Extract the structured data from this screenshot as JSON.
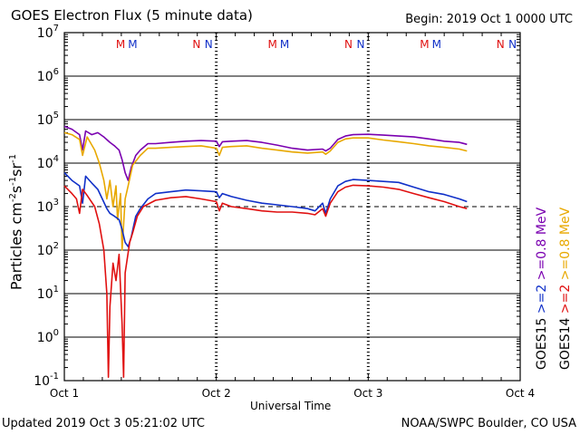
{
  "header": {
    "title": "GOES Electron Flux (5 minute data)",
    "begin": "Begin: 2019 Oct 1 0000 UTC"
  },
  "footer": {
    "updated": "Updated 2019 Oct  3 05:21:02 UTC",
    "source": "NOAA/SWPC Boulder, CO USA"
  },
  "colors": {
    "purple": "#7a00b0",
    "orange": "#e8a800",
    "blue": "#1030c8",
    "red": "#e01010"
  },
  "legend": {
    "goes15": "GOES15",
    "goes14": "GOES14",
    "e_low_15": ">=2",
    "e_high_15": ">=0.8  MeV",
    "e_low_14": ">=2",
    "e_high_14": ">=0.8  MeV"
  },
  "chart_data": {
    "type": "line",
    "title": "GOES Electron Flux (5 minute data)",
    "xlabel": "Universal Time",
    "ylabel_text": "Particles cm⁻²s⁻¹sr⁻¹",
    "yscale": "log",
    "ylim": [
      0.1,
      10000000
    ],
    "xlim_days": [
      0,
      3
    ],
    "x_ticks": [
      "Oct 1",
      "Oct 2",
      "Oct 3",
      "Oct 4"
    ],
    "y_ticks": [
      {
        "base": "10",
        "exp": "-1"
      },
      {
        "base": "10",
        "exp": "0"
      },
      {
        "base": "10",
        "exp": "1"
      },
      {
        "base": "10",
        "exp": "2"
      },
      {
        "base": "10",
        "exp": "3"
      },
      {
        "base": "10",
        "exp": "4"
      },
      {
        "base": "10",
        "exp": "5"
      },
      {
        "base": "10",
        "exp": "6"
      },
      {
        "base": "10",
        "exp": "7"
      }
    ],
    "threshold": 1000,
    "markers": [
      {
        "day": 0.37,
        "label": "M",
        "color": "#e01010"
      },
      {
        "day": 0.45,
        "label": "M",
        "color": "#1030c8"
      },
      {
        "day": 0.87,
        "label": "N",
        "color": "#e01010"
      },
      {
        "day": 0.95,
        "label": "N",
        "color": "#1030c8"
      },
      {
        "day": 1.37,
        "label": "M",
        "color": "#e01010"
      },
      {
        "day": 1.45,
        "label": "M",
        "color": "#1030c8"
      },
      {
        "day": 1.87,
        "label": "N",
        "color": "#e01010"
      },
      {
        "day": 1.95,
        "label": "N",
        "color": "#1030c8"
      },
      {
        "day": 2.37,
        "label": "M",
        "color": "#e01010"
      },
      {
        "day": 2.45,
        "label": "M",
        "color": "#1030c8"
      },
      {
        "day": 2.87,
        "label": "N",
        "color": "#e01010"
      },
      {
        "day": 2.95,
        "label": "N",
        "color": "#1030c8"
      }
    ],
    "series": [
      {
        "name": "GOES15 >=0.8 MeV",
        "color": "#7a00b0",
        "points": [
          [
            0,
            70000
          ],
          [
            0.05,
            60000
          ],
          [
            0.1,
            45000
          ],
          [
            0.12,
            20000
          ],
          [
            0.14,
            55000
          ],
          [
            0.18,
            45000
          ],
          [
            0.22,
            50000
          ],
          [
            0.26,
            40000
          ],
          [
            0.3,
            30000
          ],
          [
            0.33,
            25000
          ],
          [
            0.36,
            20000
          ],
          [
            0.38,
            12000
          ],
          [
            0.4,
            6000
          ],
          [
            0.42,
            4000
          ],
          [
            0.44,
            8000
          ],
          [
            0.47,
            15000
          ],
          [
            0.5,
            20000
          ],
          [
            0.55,
            28000
          ],
          [
            0.6,
            28000
          ],
          [
            0.7,
            30000
          ],
          [
            0.8,
            32000
          ],
          [
            0.9,
            33000
          ],
          [
            1.0,
            32000
          ],
          [
            1.02,
            24000
          ],
          [
            1.04,
            31000
          ],
          [
            1.1,
            32000
          ],
          [
            1.2,
            33000
          ],
          [
            1.3,
            30000
          ],
          [
            1.4,
            26000
          ],
          [
            1.5,
            22000
          ],
          [
            1.6,
            20000
          ],
          [
            1.7,
            21000
          ],
          [
            1.72,
            19000
          ],
          [
            1.75,
            22000
          ],
          [
            1.8,
            35000
          ],
          [
            1.85,
            42000
          ],
          [
            1.9,
            45000
          ],
          [
            2.0,
            46000
          ],
          [
            2.1,
            44000
          ],
          [
            2.2,
            42000
          ],
          [
            2.3,
            40000
          ],
          [
            2.4,
            36000
          ],
          [
            2.5,
            32000
          ],
          [
            2.6,
            30000
          ],
          [
            2.65,
            27000
          ]
        ]
      },
      {
        "name": "GOES14 >=0.8 MeV",
        "color": "#e8a800",
        "points": [
          [
            0,
            50000
          ],
          [
            0.05,
            45000
          ],
          [
            0.1,
            35000
          ],
          [
            0.12,
            15000
          ],
          [
            0.15,
            40000
          ],
          [
            0.2,
            20000
          ],
          [
            0.23,
            10000
          ],
          [
            0.26,
            4000
          ],
          [
            0.28,
            1500
          ],
          [
            0.3,
            4000
          ],
          [
            0.32,
            1000
          ],
          [
            0.34,
            3000
          ],
          [
            0.35,
            500
          ],
          [
            0.37,
            2000
          ],
          [
            0.38,
            100
          ],
          [
            0.4,
            1500
          ],
          [
            0.42,
            3000
          ],
          [
            0.45,
            9000
          ],
          [
            0.5,
            15000
          ],
          [
            0.55,
            22000
          ],
          [
            0.6,
            22000
          ],
          [
            0.7,
            23000
          ],
          [
            0.8,
            24000
          ],
          [
            0.9,
            25000
          ],
          [
            1.0,
            22000
          ],
          [
            1.02,
            15000
          ],
          [
            1.04,
            23000
          ],
          [
            1.1,
            24000
          ],
          [
            1.2,
            25000
          ],
          [
            1.3,
            22000
          ],
          [
            1.4,
            20000
          ],
          [
            1.5,
            18000
          ],
          [
            1.6,
            17000
          ],
          [
            1.7,
            18000
          ],
          [
            1.72,
            16000
          ],
          [
            1.75,
            19000
          ],
          [
            1.8,
            30000
          ],
          [
            1.85,
            36000
          ],
          [
            1.9,
            38000
          ],
          [
            2.0,
            38000
          ],
          [
            2.1,
            34000
          ],
          [
            2.2,
            31000
          ],
          [
            2.3,
            28000
          ],
          [
            2.4,
            25000
          ],
          [
            2.5,
            23000
          ],
          [
            2.6,
            21000
          ],
          [
            2.65,
            19000
          ]
        ]
      },
      {
        "name": "GOES15 >=2 MeV",
        "color": "#1030c8",
        "points": [
          [
            0,
            6000
          ],
          [
            0.05,
            4000
          ],
          [
            0.1,
            3000
          ],
          [
            0.12,
            1200
          ],
          [
            0.14,
            5000
          ],
          [
            0.18,
            3500
          ],
          [
            0.22,
            2500
          ],
          [
            0.25,
            1500
          ],
          [
            0.28,
            900
          ],
          [
            0.3,
            700
          ],
          [
            0.33,
            600
          ],
          [
            0.36,
            500
          ],
          [
            0.38,
            300
          ],
          [
            0.4,
            150
          ],
          [
            0.42,
            120
          ],
          [
            0.44,
            200
          ],
          [
            0.47,
            600
          ],
          [
            0.5,
            900
          ],
          [
            0.55,
            1500
          ],
          [
            0.6,
            2000
          ],
          [
            0.7,
            2200
          ],
          [
            0.8,
            2400
          ],
          [
            0.9,
            2300
          ],
          [
            1.0,
            2200
          ],
          [
            1.02,
            1600
          ],
          [
            1.04,
            2000
          ],
          [
            1.1,
            1700
          ],
          [
            1.2,
            1400
          ],
          [
            1.3,
            1200
          ],
          [
            1.4,
            1100
          ],
          [
            1.5,
            1000
          ],
          [
            1.6,
            900
          ],
          [
            1.65,
            800
          ],
          [
            1.7,
            1200
          ],
          [
            1.72,
            700
          ],
          [
            1.75,
            1500
          ],
          [
            1.8,
            3000
          ],
          [
            1.85,
            3800
          ],
          [
            1.9,
            4200
          ],
          [
            2.0,
            4000
          ],
          [
            2.1,
            3800
          ],
          [
            2.2,
            3600
          ],
          [
            2.3,
            2800
          ],
          [
            2.4,
            2200
          ],
          [
            2.5,
            1900
          ],
          [
            2.6,
            1500
          ],
          [
            2.65,
            1300
          ]
        ]
      },
      {
        "name": "GOES14 >=2 MeV",
        "color": "#e01010",
        "points": [
          [
            0,
            3000
          ],
          [
            0.05,
            2000
          ],
          [
            0.08,
            1500
          ],
          [
            0.1,
            700
          ],
          [
            0.12,
            2500
          ],
          [
            0.15,
            1800
          ],
          [
            0.2,
            1000
          ],
          [
            0.23,
            400
          ],
          [
            0.26,
            100
          ],
          [
            0.28,
            10
          ],
          [
            0.29,
            0.12
          ],
          [
            0.3,
            5
          ],
          [
            0.32,
            50
          ],
          [
            0.34,
            20
          ],
          [
            0.36,
            80
          ],
          [
            0.38,
            2
          ],
          [
            0.39,
            0.12
          ],
          [
            0.4,
            30
          ],
          [
            0.43,
            150
          ],
          [
            0.45,
            250
          ],
          [
            0.48,
            600
          ],
          [
            0.52,
            1000
          ],
          [
            0.6,
            1400
          ],
          [
            0.7,
            1600
          ],
          [
            0.8,
            1700
          ],
          [
            0.9,
            1500
          ],
          [
            1.0,
            1300
          ],
          [
            1.02,
            800
          ],
          [
            1.04,
            1200
          ],
          [
            1.1,
            1000
          ],
          [
            1.2,
            900
          ],
          [
            1.3,
            800
          ],
          [
            1.4,
            750
          ],
          [
            1.5,
            750
          ],
          [
            1.6,
            700
          ],
          [
            1.65,
            650
          ],
          [
            1.7,
            900
          ],
          [
            1.72,
            600
          ],
          [
            1.75,
            1200
          ],
          [
            1.8,
            2200
          ],
          [
            1.85,
            2800
          ],
          [
            1.9,
            3100
          ],
          [
            2.0,
            3000
          ],
          [
            2.1,
            2800
          ],
          [
            2.2,
            2500
          ],
          [
            2.3,
            2000
          ],
          [
            2.4,
            1600
          ],
          [
            2.5,
            1300
          ],
          [
            2.6,
            1000
          ],
          [
            2.65,
            900
          ]
        ]
      }
    ]
  }
}
